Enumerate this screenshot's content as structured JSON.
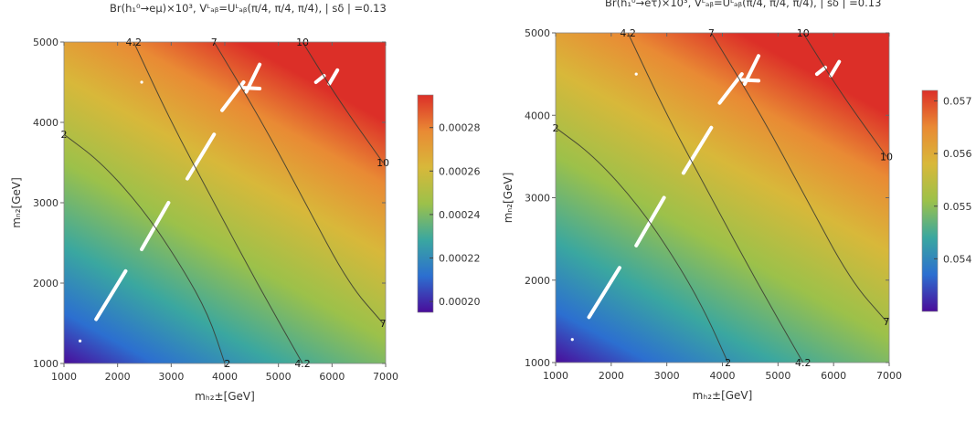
{
  "chart_data": [
    {
      "type": "heatmap",
      "title": "Br(h₁⁰→eμ)×10³, Vᴸₐᵦ=Uᴸₐᵦ(π/4, π/4, π/4), | sδ | =0.13",
      "xlabel": "mₕ₂±[GeV]",
      "ylabel": "mₙ₂[GeV]",
      "xlim": [
        1000,
        7000
      ],
      "ylim": [
        1000,
        5000
      ],
      "x_ticks": [
        "1000",
        "2000",
        "3000",
        "4000",
        "5000",
        "6000",
        "7000"
      ],
      "y_ticks": [
        "1000",
        "2000",
        "3000",
        "4000",
        "5000"
      ],
      "colorbar": {
        "min": 0.000195,
        "max": 0.000295,
        "ticks": [
          "0.00020",
          "0.00022",
          "0.00024",
          "0.00026",
          "0.00028"
        ],
        "tick_values": [
          0.0002,
          0.00022,
          0.00024,
          0.00026,
          0.00028
        ]
      },
      "colors": [
        "#4a0c9a",
        "#2c6fd0",
        "#3aa7a0",
        "#9cc14a",
        "#d8b83a",
        "#e98a34",
        "#dc2f28"
      ],
      "contours": [
        {
          "label": "2",
          "points": [
            [
              1000,
              3850
            ],
            [
              1700,
              3500
            ],
            [
              2500,
              2900
            ],
            [
              3200,
              2200
            ],
            [
              3700,
              1600
            ],
            [
              4000,
              1000
            ]
          ],
          "label_at": [
            [
              1000,
              3850
            ],
            [
              4050,
              1000
            ]
          ]
        },
        {
          "label": "4.2",
          "points": [
            [
              2300,
              5000
            ],
            [
              3000,
              4000
            ],
            [
              3800,
              3000
            ],
            [
              4600,
              2000
            ],
            [
              5450,
              1000
            ]
          ],
          "label_at": [
            [
              2300,
              5000
            ],
            [
              5450,
              1000
            ]
          ]
        },
        {
          "label": "7",
          "points": [
            [
              3800,
              5000
            ],
            [
              4700,
              4000
            ],
            [
              5500,
              3000
            ],
            [
              6300,
              2000
            ],
            [
              6950,
              1500
            ]
          ],
          "label_at": [
            [
              3800,
              5000
            ],
            [
              6950,
              1500
            ]
          ]
        },
        {
          "label": "10",
          "points": [
            [
              5450,
              5000
            ],
            [
              6100,
              4300
            ],
            [
              6950,
              3500
            ]
          ],
          "label_at": [
            [
              5450,
              5000
            ],
            [
              6950,
              3500
            ]
          ]
        }
      ],
      "gaps": [
        [
          [
            1600,
            1550
          ],
          [
            2150,
            2150
          ]
        ],
        [
          [
            2450,
            2420
          ],
          [
            2950,
            3000
          ]
        ],
        [
          [
            3300,
            3300
          ],
          [
            3800,
            3850
          ]
        ],
        [
          [
            3950,
            4150
          ],
          [
            4350,
            4500
          ]
        ],
        [
          [
            4400,
            4380
          ],
          [
            4650,
            4720
          ]
        ],
        [
          [
            4350,
            4430
          ],
          [
            4650,
            4420
          ]
        ],
        [
          [
            5700,
            4500
          ],
          [
            5850,
            4580
          ]
        ],
        [
          [
            5950,
            4480
          ],
          [
            6100,
            4650
          ]
        ]
      ]
    },
    {
      "type": "heatmap",
      "title": "Br(h₁⁰→eτ)×10³, Vᴸₐᵦ=Uᴸₐᵦ(π/4, π/4, π/4), | sδ | =0.13",
      "xlabel": "mₕ₂±[GeV]",
      "ylabel": "mₙ₂[GeV]",
      "xlim": [
        1000,
        7000
      ],
      "ylim": [
        1000,
        5000
      ],
      "x_ticks": [
        "1000",
        "2000",
        "3000",
        "4000",
        "5000",
        "6000",
        "7000"
      ],
      "y_ticks": [
        "1000",
        "2000",
        "3000",
        "4000",
        "5000"
      ],
      "colorbar": {
        "min": 0.053,
        "max": 0.0572,
        "ticks": [
          "0.054",
          "0.055",
          "0.056",
          "0.057"
        ],
        "tick_values": [
          0.054,
          0.055,
          0.056,
          0.057
        ]
      },
      "colors": [
        "#4a0c9a",
        "#2c6fd0",
        "#3aa7a0",
        "#9cc14a",
        "#d8b83a",
        "#e98a34",
        "#dc2f28"
      ],
      "contours": [
        {
          "label": "2",
          "points": [
            [
              1000,
              3850
            ],
            [
              1700,
              3500
            ],
            [
              2500,
              2900
            ],
            [
              3200,
              2200
            ],
            [
              3700,
              1600
            ],
            [
              4100,
              1000
            ]
          ],
          "label_at": [
            [
              1000,
              3850
            ],
            [
              4100,
              1000
            ]
          ]
        },
        {
          "label": "4.2",
          "points": [
            [
              2300,
              5000
            ],
            [
              3000,
              4000
            ],
            [
              3800,
              3000
            ],
            [
              4600,
              2000
            ],
            [
              5450,
              1000
            ]
          ],
          "label_at": [
            [
              2300,
              5000
            ],
            [
              5450,
              1000
            ]
          ]
        },
        {
          "label": "7",
          "points": [
            [
              3800,
              5000
            ],
            [
              4700,
              4000
            ],
            [
              5500,
              3000
            ],
            [
              6300,
              2000
            ],
            [
              6950,
              1500
            ]
          ],
          "label_at": [
            [
              3800,
              5000
            ],
            [
              6950,
              1500
            ]
          ]
        },
        {
          "label": "10",
          "points": [
            [
              5450,
              5000
            ],
            [
              6100,
              4300
            ],
            [
              6950,
              3500
            ]
          ],
          "label_at": [
            [
              5450,
              5000
            ],
            [
              6950,
              3500
            ]
          ]
        }
      ],
      "gaps": [
        [
          [
            1600,
            1550
          ],
          [
            2150,
            2150
          ]
        ],
        [
          [
            2450,
            2420
          ],
          [
            2950,
            3000
          ]
        ],
        [
          [
            3300,
            3300
          ],
          [
            3800,
            3850
          ]
        ],
        [
          [
            3950,
            4150
          ],
          [
            4350,
            4500
          ]
        ],
        [
          [
            4400,
            4380
          ],
          [
            4650,
            4720
          ]
        ],
        [
          [
            4350,
            4430
          ],
          [
            4650,
            4420
          ]
        ],
        [
          [
            5700,
            4500
          ],
          [
            5850,
            4580
          ]
        ],
        [
          [
            5950,
            4480
          ],
          [
            6100,
            4650
          ]
        ]
      ]
    }
  ]
}
